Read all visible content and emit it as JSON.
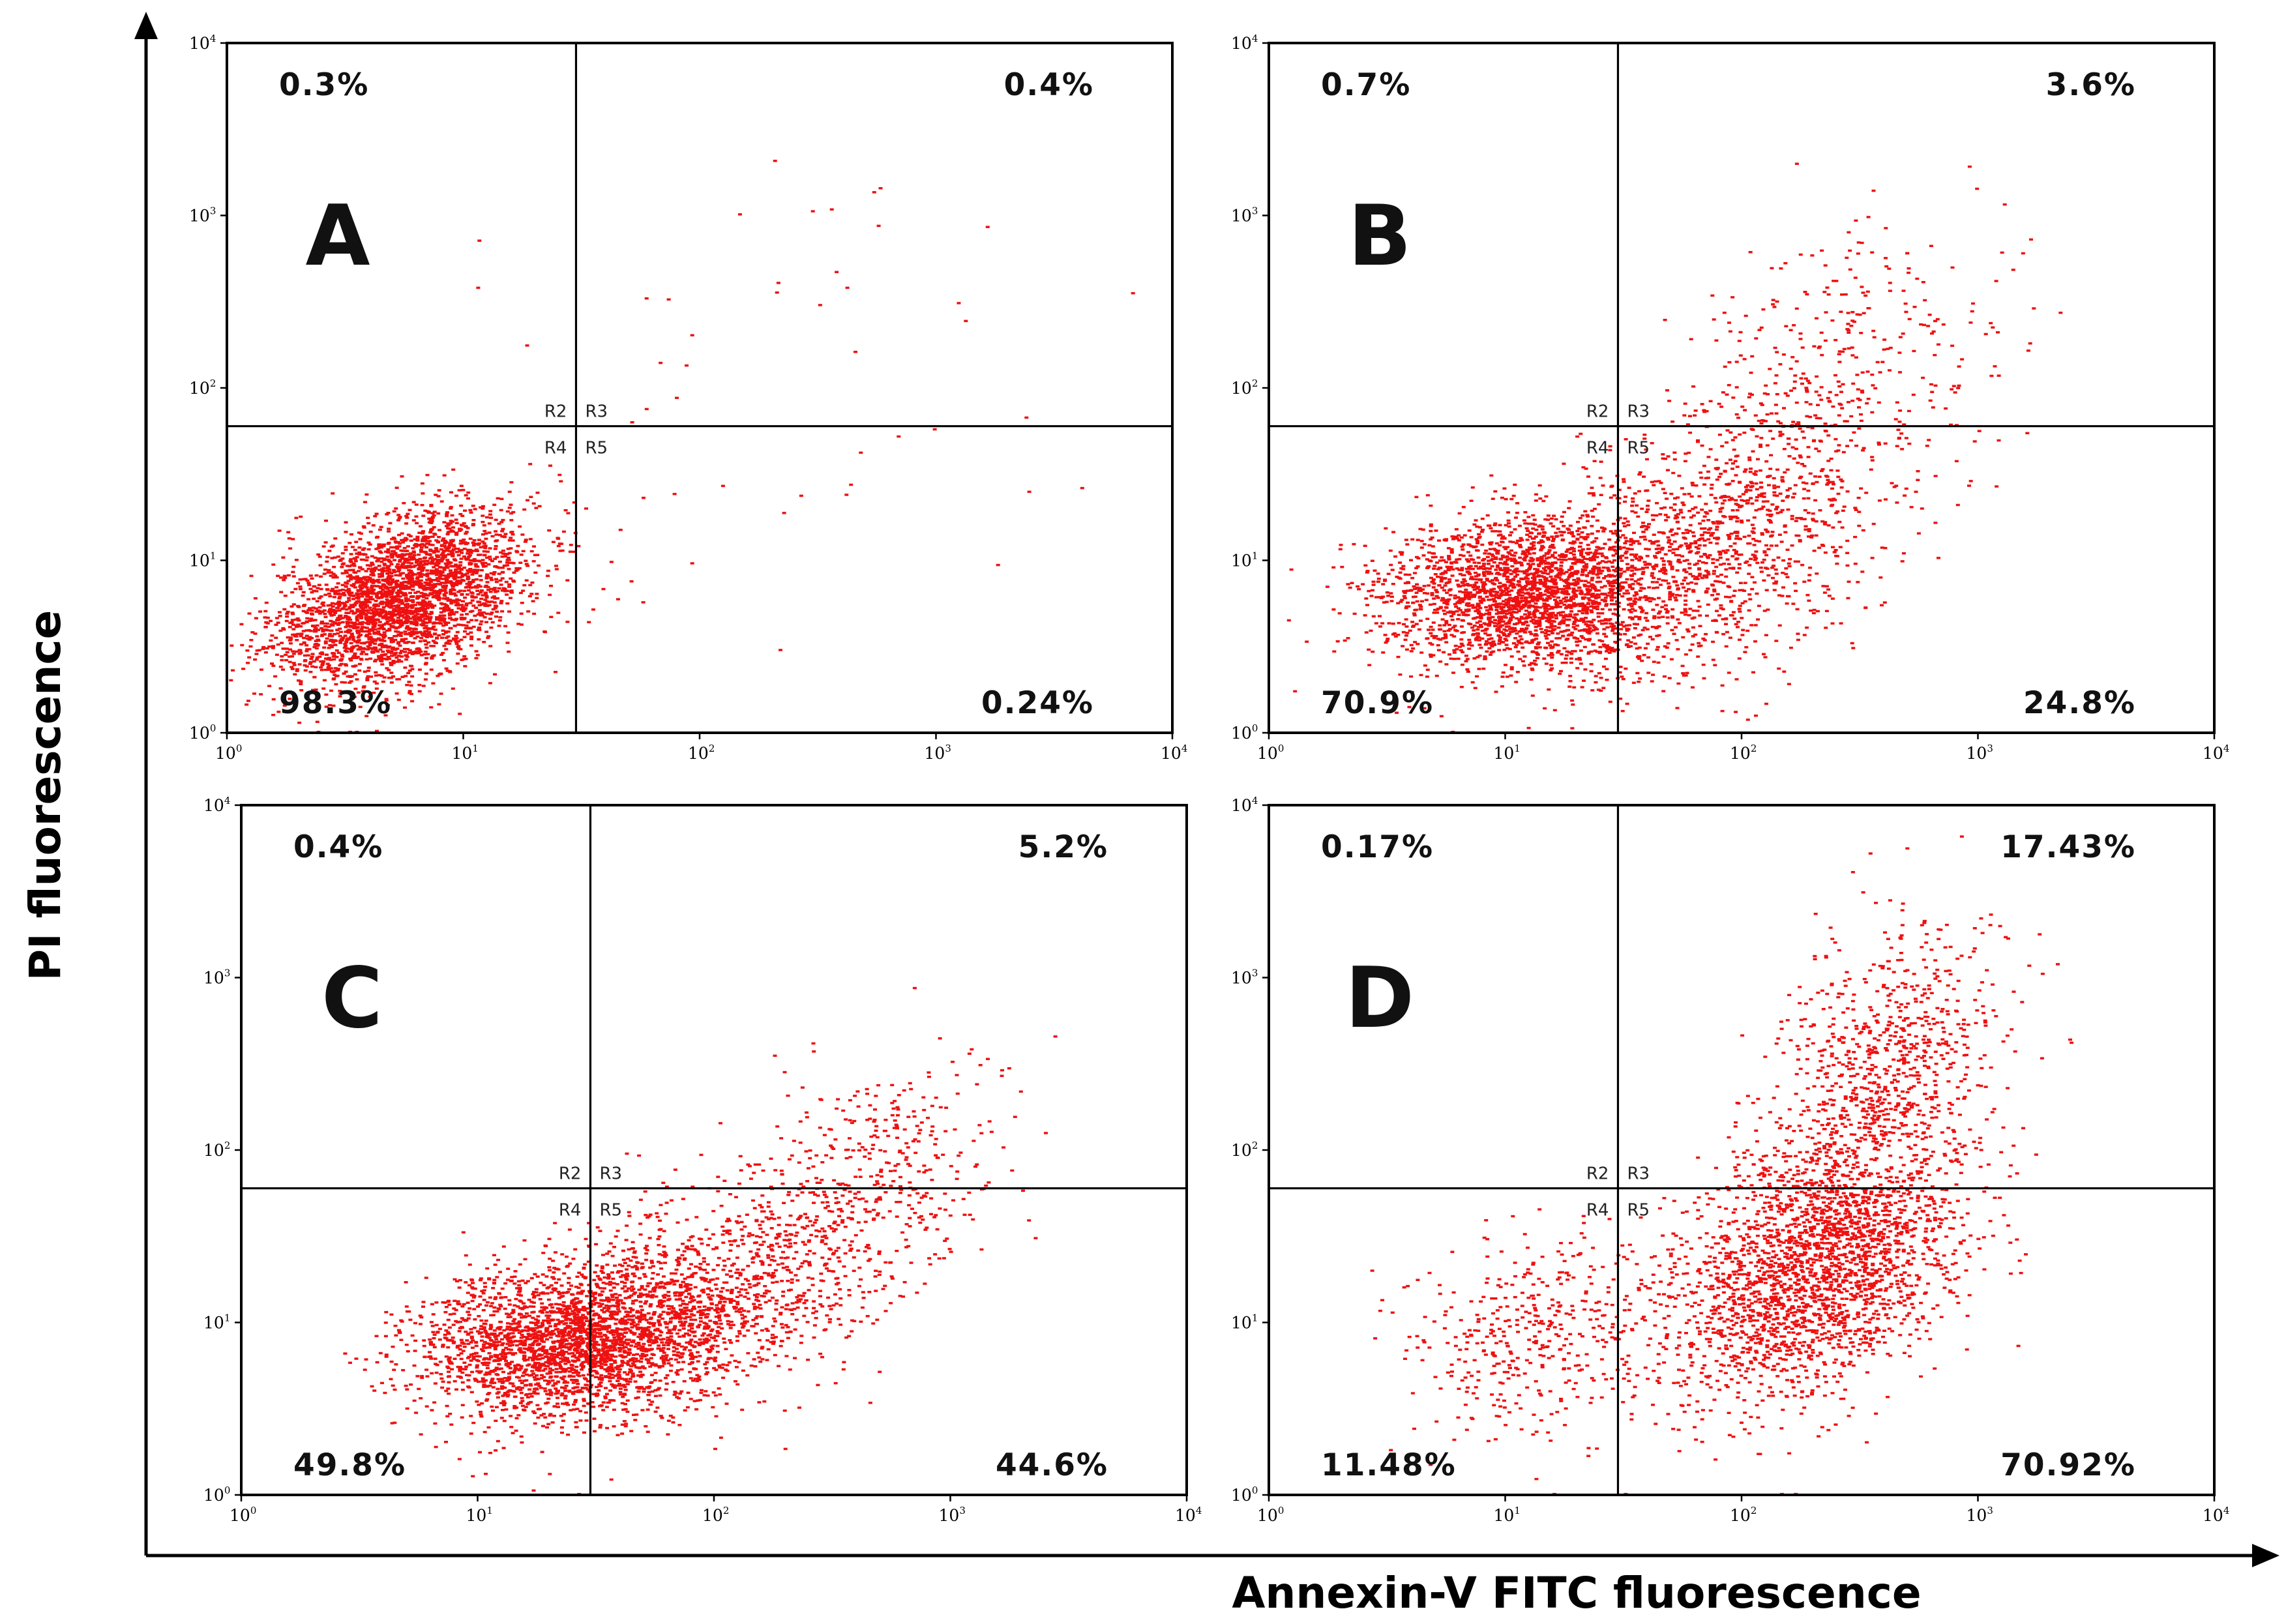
{
  "chart_data": {
    "type": "scatter",
    "xlabel": "Annexin-V FITC fluorescence",
    "ylabel": "PI fluorescence",
    "x_scale": "log",
    "y_scale": "log",
    "xlim": [
      1,
      10000
    ],
    "ylim": [
      1,
      10000
    ],
    "ticks": [
      {
        "base": "10",
        "exp": "0"
      },
      {
        "base": "10",
        "exp": "1"
      },
      {
        "base": "10",
        "exp": "2"
      },
      {
        "base": "10",
        "exp": "3"
      },
      {
        "base": "10",
        "exp": "4"
      }
    ],
    "region_labels": [
      "R2",
      "R3",
      "R4",
      "R5"
    ],
    "panels": [
      {
        "label": "A",
        "gate": {
          "x": 30,
          "y": 60
        },
        "quadrants": {
          "upper_left": "0.3%",
          "upper_right": "0.4%",
          "lower_left": "98.3%",
          "lower_right": "0.24%"
        },
        "populations": [
          {
            "cx": 5.5,
            "cy": 6,
            "sx": 0.27,
            "sy": 0.25,
            "n": 3000,
            "corr": 0.45
          },
          {
            "cx": 300,
            "cy": 150,
            "sx": 0.6,
            "sy": 0.8,
            "n": 45,
            "corr": 0.0
          }
        ]
      },
      {
        "label": "B",
        "gate": {
          "x": 30,
          "y": 60
        },
        "quadrants": {
          "upper_left": "0.7%",
          "upper_right": "3.6%",
          "lower_left": "70.9%",
          "lower_right": "24.8%"
        },
        "populations": [
          {
            "cx": 12,
            "cy": 6.5,
            "sx": 0.3,
            "sy": 0.22,
            "n": 2400,
            "corr": 0.1
          },
          {
            "cx": 80,
            "cy": 12,
            "sx": 0.35,
            "sy": 0.38,
            "n": 1200,
            "corr": 0.35
          },
          {
            "cx": 250,
            "cy": 120,
            "sx": 0.35,
            "sy": 0.45,
            "n": 350,
            "corr": 0.3
          }
        ]
      },
      {
        "label": "C",
        "gate": {
          "x": 30,
          "y": 60
        },
        "quadrants": {
          "upper_left": "0.4%",
          "upper_right": "5.2%",
          "lower_left": "49.8%",
          "lower_right": "44.6%"
        },
        "populations": [
          {
            "cx": 22,
            "cy": 7.5,
            "sx": 0.3,
            "sy": 0.22,
            "n": 2200,
            "corr": 0.15
          },
          {
            "cx": 80,
            "cy": 12,
            "sx": 0.35,
            "sy": 0.3,
            "n": 1300,
            "corr": 0.35
          },
          {
            "cx": 400,
            "cy": 60,
            "sx": 0.3,
            "sy": 0.35,
            "n": 500,
            "corr": 0.3
          }
        ]
      },
      {
        "label": "D",
        "gate": {
          "x": 30,
          "y": 60
        },
        "quadrants": {
          "upper_left": "0.17%",
          "upper_right": "17.43%",
          "lower_left": "11.48%",
          "lower_right": "70.92%"
        },
        "populations": [
          {
            "cx": 15,
            "cy": 8,
            "sx": 0.3,
            "sy": 0.3,
            "n": 450,
            "corr": 0.1
          },
          {
            "cx": 200,
            "cy": 20,
            "sx": 0.3,
            "sy": 0.38,
            "n": 2300,
            "corr": 0.35
          },
          {
            "cx": 400,
            "cy": 250,
            "sx": 0.25,
            "sy": 0.45,
            "n": 900,
            "corr": 0.3
          }
        ]
      }
    ]
  }
}
